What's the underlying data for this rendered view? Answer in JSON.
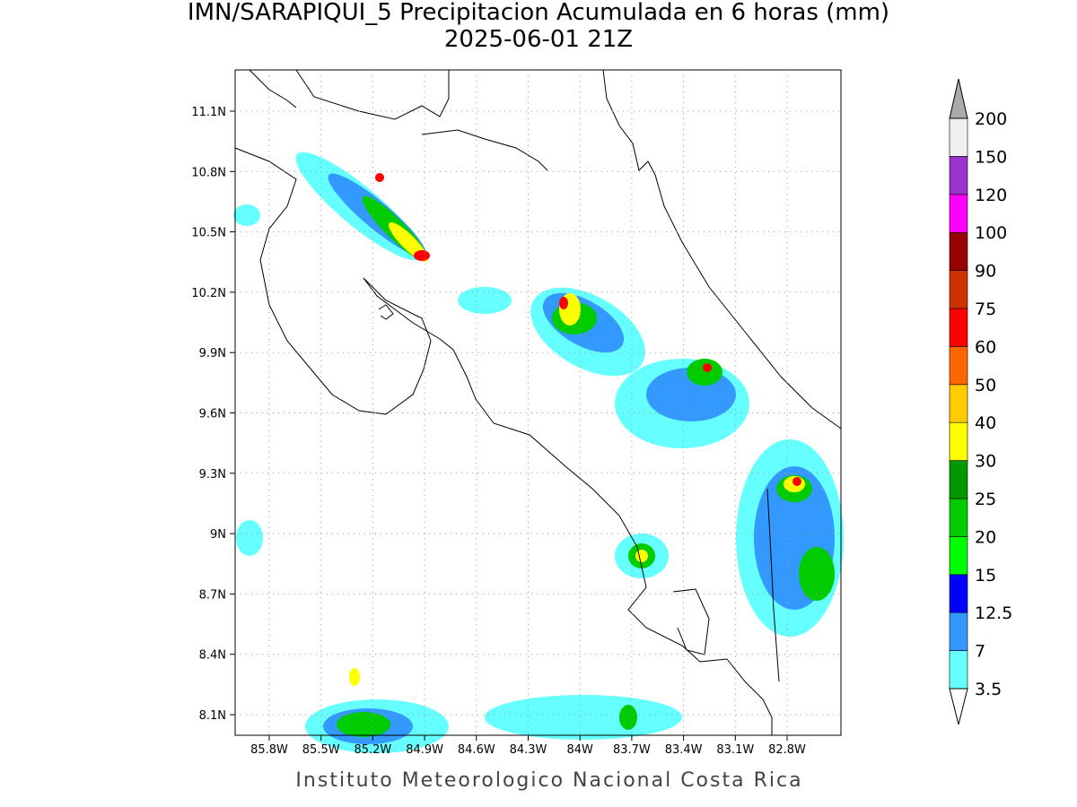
{
  "title": "IMN/SARAPIQUI_5 Precipitacion Acumulada en 6 horas (mm)",
  "subtitle": "2025-06-01 21Z",
  "footer": "Instituto Meteorologico Nacional Costa Rica",
  "map": {
    "lon_ticks": [
      "85.8W",
      "85.5W",
      "85.2W",
      "84.9W",
      "84.6W",
      "84.3W",
      "84W",
      "83.7W",
      "83.4W",
      "83.1W",
      "82.8W"
    ],
    "lat_ticks": [
      "11.1N",
      "10.8N",
      "10.5N",
      "10.2N",
      "9.9N",
      "9.6N",
      "9.3N",
      "9N",
      "8.7N",
      "8.4N",
      "8.1N"
    ]
  },
  "colorbar": {
    "below_color": "#ffffff",
    "above_color": "#aaaaaa",
    "levels": [
      {
        "label": "3.5",
        "color": "#66ffff"
      },
      {
        "label": "7",
        "color": "#3399ff"
      },
      {
        "label": "12.5",
        "color": "#0000ff"
      },
      {
        "label": "15",
        "color": "#00ff00"
      },
      {
        "label": "20",
        "color": "#00cc00"
      },
      {
        "label": "25",
        "color": "#009900"
      },
      {
        "label": "30",
        "color": "#ffff00"
      },
      {
        "label": "40",
        "color": "#ffcc00"
      },
      {
        "label": "50",
        "color": "#ff6600"
      },
      {
        "label": "60",
        "color": "#ff0000"
      },
      {
        "label": "75",
        "color": "#cc3300"
      },
      {
        "label": "90",
        "color": "#990000"
      },
      {
        "label": "100",
        "color": "#ff00ff"
      },
      {
        "label": "120",
        "color": "#9933cc"
      },
      {
        "label": "150",
        "color": "#f0f0f0"
      },
      {
        "label": "200",
        "color": null
      }
    ]
  }
}
